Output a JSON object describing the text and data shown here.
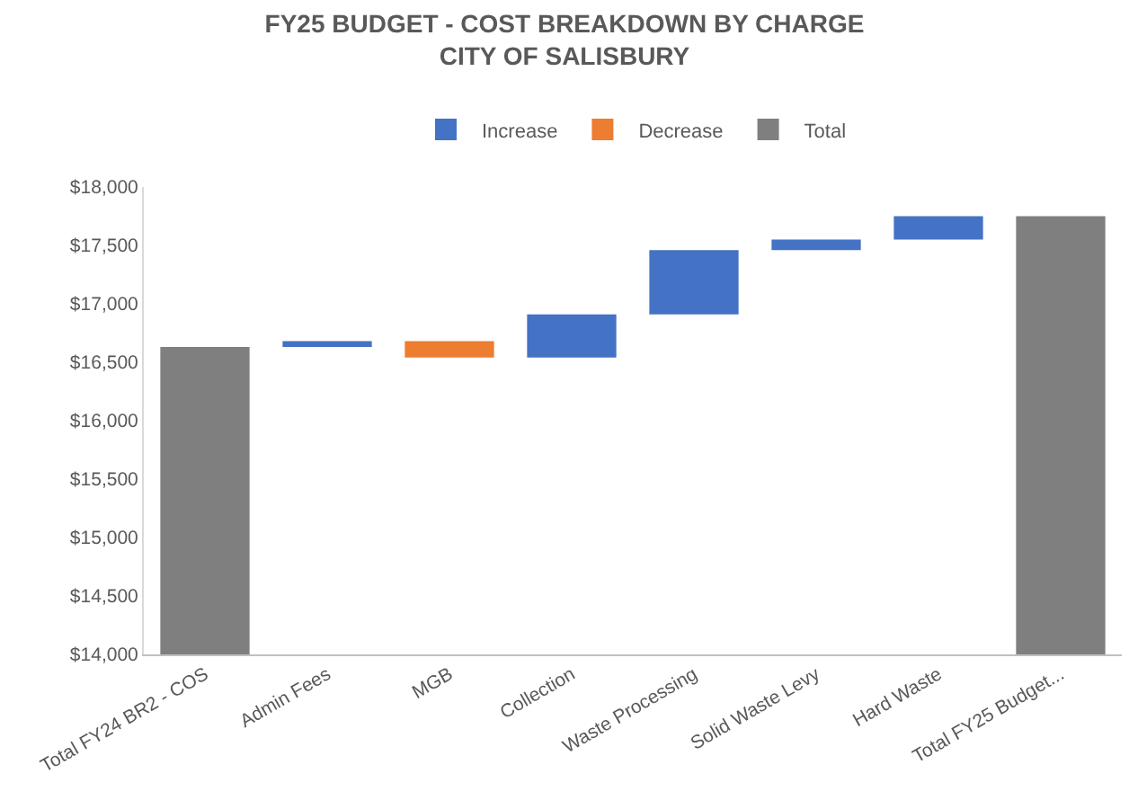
{
  "chart_data": {
    "type": "bar",
    "title": "FY25 BUDGET - COST BREAKDOWN BY CHARGE",
    "subtitle": "CITY OF SALISBURY",
    "categories": [
      "Total FY24 BR2 - COS",
      "Admin Fees",
      "MGB",
      "Collection",
      "Waste Processing",
      "Solid Waste Levy",
      "Hard Waste",
      "Total FY25 Budget..."
    ],
    "series": [
      {
        "name": "Increase",
        "color": "#4472c4",
        "values": [
          null,
          50,
          null,
          370,
          550,
          90,
          200,
          null
        ],
        "base": [
          null,
          16630,
          null,
          16540,
          16910,
          17460,
          17550,
          null
        ]
      },
      {
        "name": "Decrease",
        "color": "#ed7d31",
        "values": [
          null,
          null,
          -140,
          null,
          null,
          null,
          null,
          null
        ],
        "base": [
          null,
          null,
          16680,
          null,
          null,
          null,
          null,
          null
        ]
      },
      {
        "name": "Total",
        "color": "#7f7f7f",
        "values": [
          16630,
          null,
          null,
          null,
          null,
          null,
          null,
          17750
        ]
      }
    ],
    "ylim": [
      14000,
      18000
    ],
    "yticks": [
      {
        "value": 14000,
        "label": "$14,000"
      },
      {
        "value": 14500,
        "label": "$14,500"
      },
      {
        "value": 15000,
        "label": "$15,000"
      },
      {
        "value": 15500,
        "label": "$15,500"
      },
      {
        "value": 16000,
        "label": "$16,000"
      },
      {
        "value": 16500,
        "label": "$16,500"
      },
      {
        "value": 17000,
        "label": "$17,000"
      },
      {
        "value": 17500,
        "label": "$17,500"
      },
      {
        "value": 18000,
        "label": "$18,000"
      }
    ],
    "grid": false,
    "legend": "top"
  }
}
